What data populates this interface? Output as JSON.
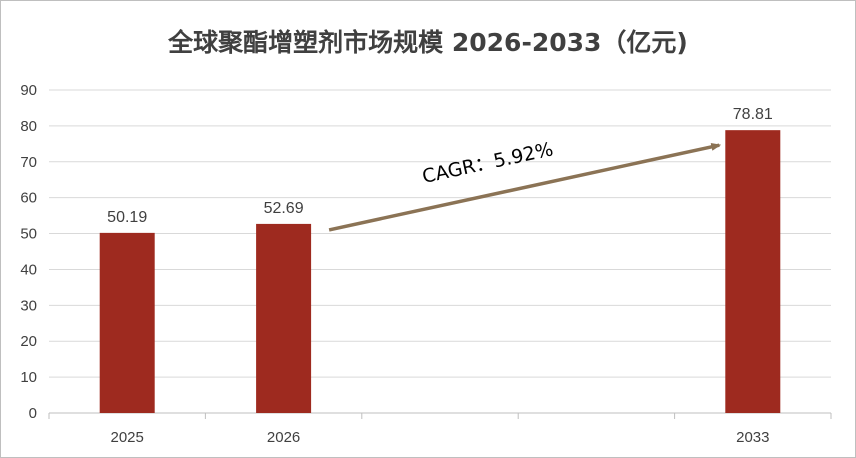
{
  "chart_data": {
    "type": "bar",
    "title": "全球聚酯增塑剂市场规模 2026-2033（亿元)",
    "xlabel": "",
    "ylabel": "",
    "categories": [
      "2025",
      "2026",
      "",
      "",
      "2033"
    ],
    "values": [
      50.19,
      52.69,
      null,
      null,
      78.81
    ],
    "data_labels": [
      "50.19",
      "52.69",
      "",
      "",
      "78.81"
    ],
    "ylim": [
      0,
      90
    ],
    "yticks": [
      0,
      10,
      20,
      30,
      40,
      50,
      60,
      70,
      80,
      90
    ],
    "grid": true,
    "legend": "none",
    "bar_color": "#9e2a1f",
    "annotation": {
      "text": "CAGR：5.92%",
      "arrow_from_category": "2026",
      "arrow_to_category": "2033",
      "arrow_color": "#8b7355"
    }
  }
}
